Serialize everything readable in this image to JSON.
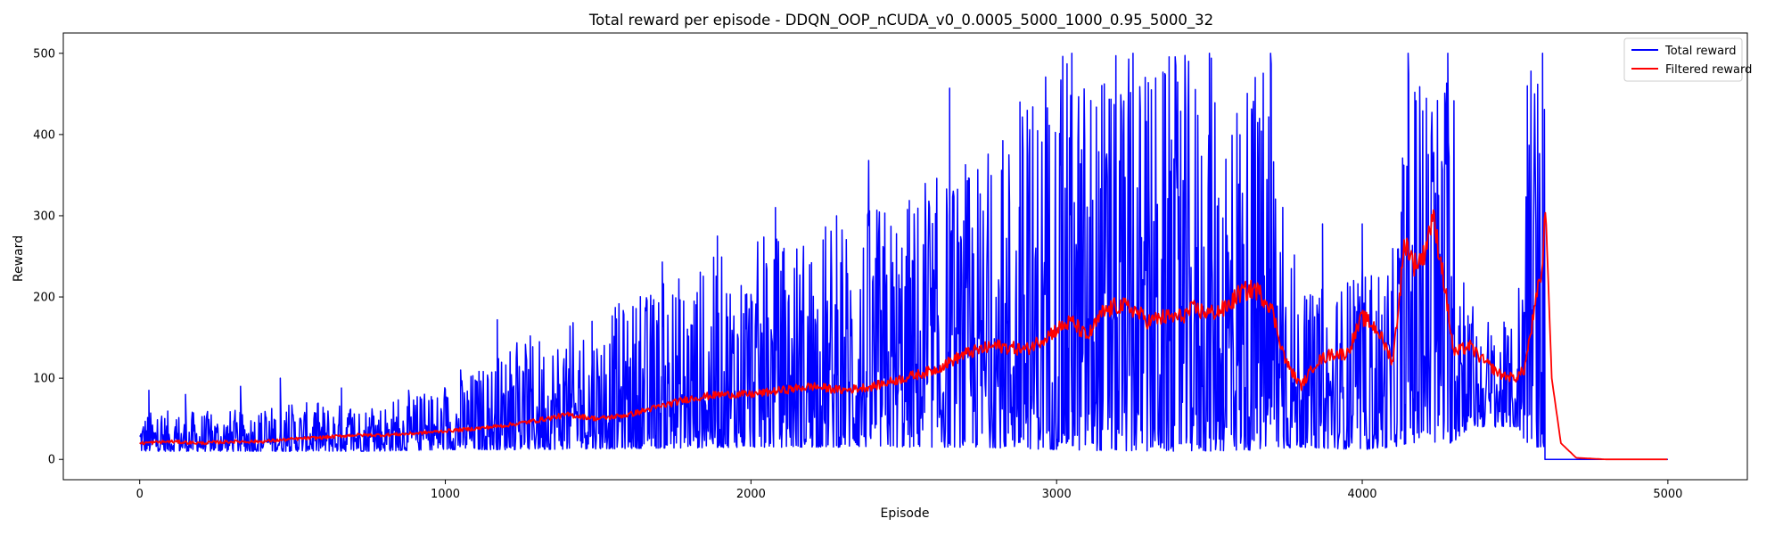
{
  "chart_data": {
    "type": "line",
    "title": "Total reward per episode - DDQN_OOP_nCUDA_v0_0.0005_5000_1000_0.95_5000_32",
    "xlabel": "Episode",
    "ylabel": "Reward",
    "xlim": [
      -250,
      5260
    ],
    "ylim": [
      -25,
      525
    ],
    "xticks": [
      0,
      1000,
      2000,
      3000,
      4000,
      5000
    ],
    "yticks": [
      0,
      100,
      200,
      300,
      400,
      500
    ],
    "grid": false,
    "legend_position": "top-right",
    "colors": {
      "total": "#0000ff",
      "filtered": "#ff0000"
    },
    "total_reward_envelope": {
      "x": [
        0,
        250,
        500,
        750,
        1000,
        1250,
        1500,
        1750,
        2000,
        2250,
        2500,
        2750,
        3000,
        3250,
        3500,
        3700,
        3800,
        4000,
        4100,
        4150,
        4300,
        4350,
        4500,
        4550,
        4598
      ],
      "low": [
        10,
        10,
        10,
        10,
        12,
        12,
        13,
        14,
        15,
        15,
        15,
        15,
        12,
        10,
        10,
        12,
        15,
        12,
        15,
        20,
        20,
        40,
        40,
        15,
        15
      ],
      "high": [
        60,
        60,
        70,
        70,
        90,
        150,
        180,
        230,
        270,
        300,
        330,
        380,
        500,
        500,
        500,
        500,
        200,
        240,
        260,
        500,
        500,
        200,
        160,
        500,
        500
      ]
    },
    "total_reward_peaks": [
      {
        "x": 30,
        "y": 85
      },
      {
        "x": 150,
        "y": 80
      },
      {
        "x": 330,
        "y": 90
      },
      {
        "x": 460,
        "y": 100
      },
      {
        "x": 660,
        "y": 88
      },
      {
        "x": 880,
        "y": 85
      },
      {
        "x": 1050,
        "y": 110
      },
      {
        "x": 1170,
        "y": 172
      },
      {
        "x": 1480,
        "y": 170
      },
      {
        "x": 1710,
        "y": 243
      },
      {
        "x": 1890,
        "y": 275
      },
      {
        "x": 2080,
        "y": 310
      },
      {
        "x": 2280,
        "y": 300
      },
      {
        "x": 2385,
        "y": 368
      },
      {
        "x": 2650,
        "y": 457
      },
      {
        "x": 2880,
        "y": 440
      },
      {
        "x": 3050,
        "y": 500
      },
      {
        "x": 3250,
        "y": 500
      },
      {
        "x": 3500,
        "y": 500
      },
      {
        "x": 3700,
        "y": 500
      },
      {
        "x": 3870,
        "y": 290
      },
      {
        "x": 4000,
        "y": 290
      },
      {
        "x": 4150,
        "y": 500
      },
      {
        "x": 4280,
        "y": 500
      },
      {
        "x": 4540,
        "y": 460
      },
      {
        "x": 4590,
        "y": 500
      }
    ],
    "total_reward_tail": {
      "x": [
        4598,
        4600,
        5000
      ],
      "y": [
        0,
        0,
        0
      ]
    },
    "filtered_reward": {
      "x": [
        0,
        100,
        200,
        300,
        400,
        500,
        600,
        700,
        800,
        900,
        1000,
        1100,
        1200,
        1300,
        1400,
        1500,
        1600,
        1700,
        1800,
        1900,
        2000,
        2100,
        2200,
        2300,
        2400,
        2500,
        2600,
        2700,
        2800,
        2900,
        3000,
        3050,
        3100,
        3150,
        3200,
        3250,
        3300,
        3350,
        3400,
        3450,
        3500,
        3550,
        3600,
        3650,
        3700,
        3750,
        3800,
        3850,
        3900,
        3950,
        4000,
        4050,
        4100,
        4140,
        4170,
        4200,
        4230,
        4260,
        4300,
        4350,
        4400,
        4450,
        4500,
        4530,
        4560,
        4590,
        4600,
        4620,
        4650,
        4700,
        4800,
        5000
      ],
      "y": [
        20,
        22,
        20,
        22,
        22,
        25,
        27,
        30,
        30,
        32,
        35,
        38,
        42,
        48,
        55,
        50,
        55,
        65,
        75,
        80,
        80,
        85,
        90,
        85,
        90,
        100,
        110,
        130,
        140,
        135,
        160,
        170,
        150,
        180,
        190,
        185,
        170,
        175,
        175,
        185,
        180,
        185,
        205,
        210,
        190,
        120,
        90,
        120,
        130,
        130,
        175,
        160,
        120,
        270,
        240,
        250,
        300,
        240,
        130,
        140,
        120,
        105,
        100,
        110,
        175,
        240,
        310,
        100,
        20,
        2,
        0,
        0
      ]
    },
    "legend": [
      "Total reward",
      "Filtered reward"
    ]
  }
}
